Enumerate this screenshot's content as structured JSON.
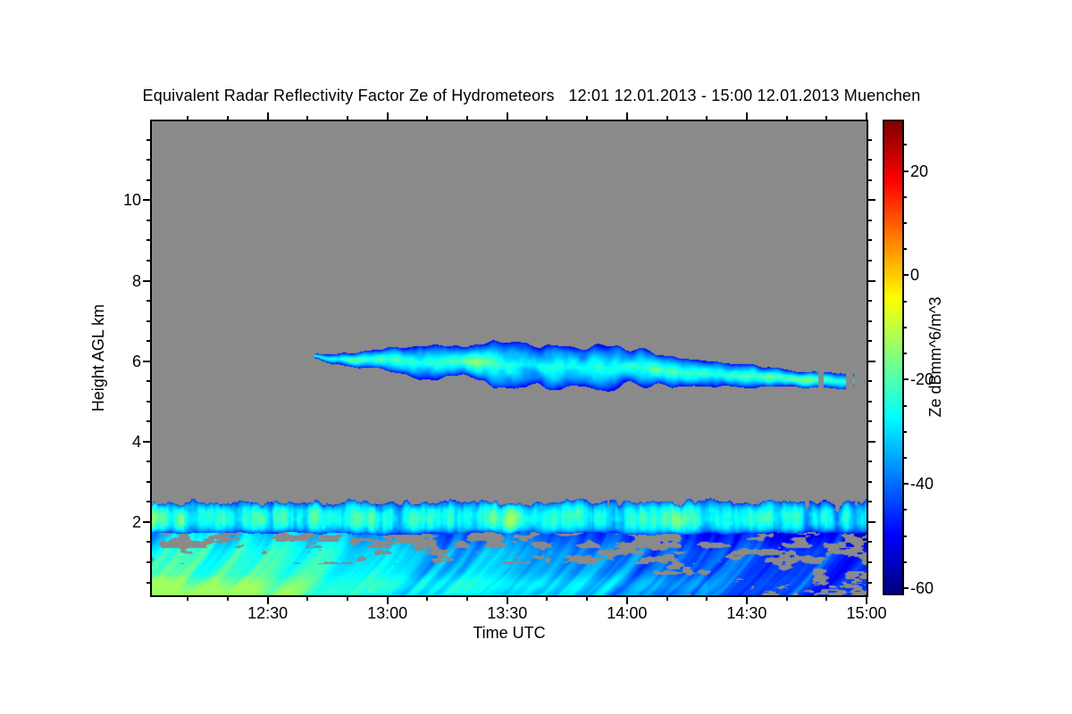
{
  "page": {
    "background": "#ffffff"
  },
  "title": "Equivalent Radar Reflectivity Factor Ze of Hydrometeors   12:01 12.01.2013 - 15:00 12.01.2013 Muenchen",
  "chart_data": {
    "type": "heatmap",
    "title": "Equivalent Radar Reflectivity Factor Ze of Hydrometeors",
    "time_start": "12:01 12.01.2013",
    "time_end": "15:00 12.01.2013",
    "station": "Muenchen",
    "xlabel": "Time UTC",
    "ylabel": "Height AGL km",
    "x_range_minutes": [
      1,
      180
    ],
    "x_ticks": [
      {
        "minute": 30,
        "label": "12:30"
      },
      {
        "minute": 60,
        "label": "13:00"
      },
      {
        "minute": 90,
        "label": "13:30"
      },
      {
        "minute": 120,
        "label": "14:00"
      },
      {
        "minute": 150,
        "label": "14:30"
      },
      {
        "minute": 180,
        "label": "15:00"
      }
    ],
    "x_minor_tick_step_minutes": 10,
    "y_range_km": [
      0.18,
      11.96
    ],
    "y_ticks": [
      {
        "km": 2,
        "label": "2"
      },
      {
        "km": 4,
        "label": "4"
      },
      {
        "km": 6,
        "label": "6"
      },
      {
        "km": 8,
        "label": "8"
      },
      {
        "km": 10,
        "label": "10"
      }
    ],
    "y_minor_tick_step_km": 0.5,
    "no_data_color": "#8a8a8a",
    "colorbar": {
      "label": "Ze dBmm^6/m^3",
      "min": -61,
      "max": 29.5,
      "ticks": [
        {
          "value": 20,
          "label": "20"
        },
        {
          "value": 0,
          "label": "0"
        },
        {
          "value": -20,
          "label": "-20"
        },
        {
          "value": -40,
          "label": "-40"
        },
        {
          "value": -60,
          "label": "-60"
        }
      ],
      "minor_tick_step": 5,
      "colormap": "jet"
    },
    "layers": {
      "elevated_cloud_layer": {
        "description": "mid-level ice cloud band drifting from 12:42 to 15:00",
        "onset_minute": 42,
        "center_height_km": [
          [
            42,
            6.1
          ],
          [
            60,
            6.0
          ],
          [
            80,
            5.95
          ],
          [
            100,
            5.9
          ],
          [
            120,
            5.85
          ],
          [
            138,
            5.7
          ],
          [
            152,
            5.6
          ],
          [
            166,
            5.55
          ],
          [
            179,
            5.55
          ]
        ],
        "half_thickness_km": [
          [
            42,
            0.06
          ],
          [
            55,
            0.2
          ],
          [
            72,
            0.38
          ],
          [
            95,
            0.5
          ],
          [
            118,
            0.45
          ],
          [
            138,
            0.34
          ],
          [
            152,
            0.26
          ],
          [
            166,
            0.17
          ],
          [
            179,
            0.15
          ]
        ],
        "fragment_after_minute": 150,
        "core_dbz_max": -15,
        "edge_dbz": -51
      },
      "snow_generating_band": {
        "description": "bright streaky layer at 1.7-2.6 km across whole period",
        "top_height_km": 2.55,
        "top_raggedness_km": 0.12,
        "bottom_height_km": 1.72,
        "dbz_min": -50,
        "dbz_max": -12
      },
      "gap_zone": {
        "description": "mottled no-data gap between band and boundary layer",
        "top_km": 1.72,
        "bottom_km": 1.25,
        "gray_fraction_before_1405": 0.5,
        "gray_fraction_after": 0.3
      },
      "boundary_precip_layer": {
        "description": "low-level fall streaks, bright at 12:01-13:30, fading and breaking up toward 15:00",
        "top_km": 1.25,
        "bottom_km": 0.18,
        "mean_dbz_vs_time": [
          [
            1,
            -26
          ],
          [
            40,
            -28
          ],
          [
            70,
            -32
          ],
          [
            100,
            -35
          ],
          [
            120,
            -39
          ],
          [
            145,
            -44
          ],
          [
            179,
            -46
          ]
        ],
        "low_level_brightening_db": [
          [
            1,
            6
          ],
          [
            60,
            5
          ],
          [
            100,
            4
          ],
          [
            130,
            1
          ],
          [
            179,
            -2
          ]
        ],
        "bright_corner": {
          "until_minute": 50,
          "below_km": 0.7,
          "peak_dbz": -14
        },
        "bright_band_km": [
          0.3,
          0.6
        ],
        "gray_growth_after_minute": 125
      }
    }
  }
}
